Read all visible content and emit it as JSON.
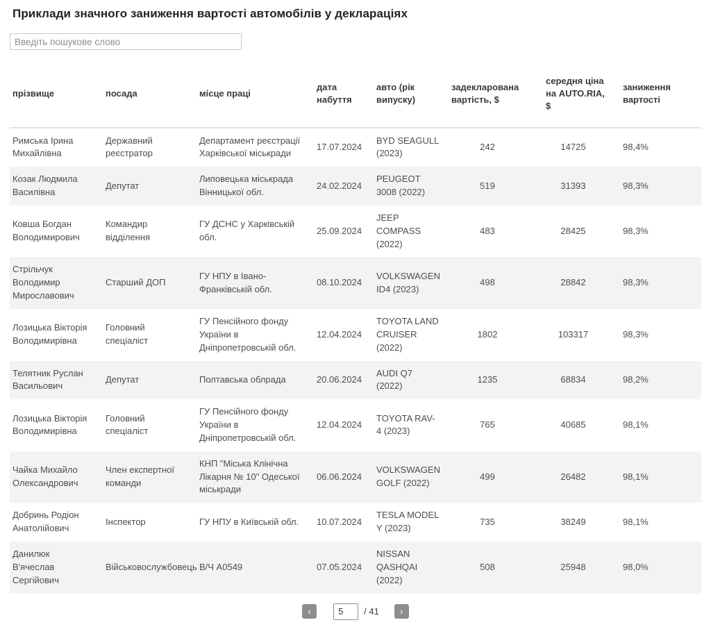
{
  "page": {
    "title": "Приклади значного заниження вартості автомобілів у деклараціях"
  },
  "search": {
    "placeholder": "Введіть пошукове слово"
  },
  "table": {
    "columns": [
      "прізвище",
      "посада",
      "місце праці",
      "дата набуття",
      "авто (рік випуску)",
      "задекларована вартість, $",
      "середня ціна на AUTO.RIA, $",
      "заниження вартості"
    ],
    "rows": [
      {
        "name": "Римська Ірина Михайлівна",
        "position": "Державний реєстратор",
        "workplace": "Департамент реєстрації Харківської міськради",
        "date": "17.07.2024",
        "car": "BYD SEAGULL (2023)",
        "declared": "242",
        "market": "14725",
        "drop": "98,4%"
      },
      {
        "name": "Козак Людмила Василівна",
        "position": "Депутат",
        "workplace": "Липовецька міськрада Вінницької обл.",
        "date": "24.02.2024",
        "car": "PEUGEOT 3008 (2022)",
        "declared": "519",
        "market": "31393",
        "drop": "98,3%"
      },
      {
        "name": "Ковша Богдан Володимирович",
        "position": "Командир відділення",
        "workplace": "ГУ ДСНС у Харківській обл.",
        "date": "25.09.2024",
        "car": "JEEP COMPASS (2022)",
        "declared": "483",
        "market": "28425",
        "drop": "98,3%"
      },
      {
        "name": "Стрільчук Володимир Мирославович",
        "position": "Старший ДОП",
        "workplace": "ГУ НПУ в Івано-Франківській обл.",
        "date": "08.10.2024",
        "car": "VOLKSWAGEN ID4 (2023)",
        "declared": "498",
        "market": "28842",
        "drop": "98,3%"
      },
      {
        "name": "Лозицька Вікторія Володимирівна",
        "position": "Головний спеціаліст",
        "workplace": "ГУ Пенсійного фонду України в Дніпропетровській обл.",
        "date": "12.04.2024",
        "car": "TOYOTA LAND CRUISER (2022)",
        "declared": "1802",
        "market": "103317",
        "drop": "98,3%"
      },
      {
        "name": "Телятник Руслан Васильович",
        "position": "Депутат",
        "workplace": "Полтавська облрада",
        "date": "20.06.2024",
        "car": "AUDI Q7 (2022)",
        "declared": "1235",
        "market": "68834",
        "drop": "98,2%"
      },
      {
        "name": "Лозицька Вікторія Володимирівна",
        "position": "Головний спеціаліст",
        "workplace": "ГУ Пенсійного фонду України в Дніпропетровській обл.",
        "date": "12.04.2024",
        "car": "TOYOTA RAV-4 (2023)",
        "declared": "765",
        "market": "40685",
        "drop": "98,1%"
      },
      {
        "name": "Чайка Михайло Олександрович",
        "position": "Член експертної команди",
        "workplace": "КНП \"Міська Клінічна Лікарня № 10\" Одеської міськради",
        "date": "06.06.2024",
        "car": "VOLKSWAGEN GOLF (2022)",
        "declared": "499",
        "market": "26482",
        "drop": "98,1%"
      },
      {
        "name": "Добринь Родіон Анатолійович",
        "position": "Інспектор",
        "workplace": "ГУ НПУ в Київській обл.",
        "date": "10.07.2024",
        "car": "TESLA MODEL Y (2023)",
        "declared": "735",
        "market": "38249",
        "drop": "98,1%"
      },
      {
        "name": "Данилюк В'ячеслав Сергійович",
        "position": "Військовослужбовець",
        "workplace": "В/Ч А0549",
        "date": "07.05.2024",
        "car": "NISSAN QASHQAI (2022)",
        "declared": "508",
        "market": "25948",
        "drop": "98,0%"
      }
    ]
  },
  "pagination": {
    "prev_label": "‹",
    "next_label": "›",
    "current_page": "5",
    "total_label": "/ 41"
  }
}
